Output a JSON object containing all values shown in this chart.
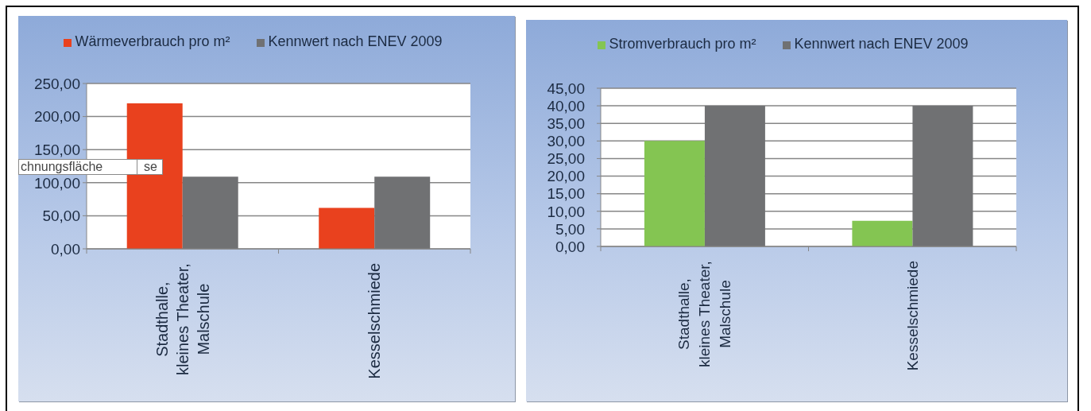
{
  "chart_data": [
    {
      "type": "bar",
      "categories": [
        "Stadthalle, kleines Theater, Malschule",
        "Kesselschmiede"
      ],
      "series": [
        {
          "name": "Wärmeverbrauch pro m²",
          "color": "#e9411e",
          "values": [
            220,
            62
          ]
        },
        {
          "name": "Kennwert nach ENEV 2009",
          "color": "#707173",
          "values": [
            109,
            109
          ]
        }
      ],
      "ylim": [
        0,
        250
      ],
      "yticks": [
        {
          "value": 0,
          "label": "0,00"
        },
        {
          "value": 50,
          "label": "50,00"
        },
        {
          "value": 100,
          "label": "100,00"
        },
        {
          "value": 150,
          "label": "150,00"
        },
        {
          "value": 200,
          "label": "200,00"
        },
        {
          "value": 250,
          "label": "250,00"
        }
      ],
      "grid": "y",
      "legend": "top",
      "annotations": [
        "chnungsfläche",
        "se"
      ]
    },
    {
      "type": "bar",
      "categories": [
        "Stadthalle, kleines Theater, Malschule",
        "Kesselschmiede"
      ],
      "series": [
        {
          "name": "Stromverbrauch pro m²",
          "color": "#84c552",
          "values": [
            30,
            7.3
          ]
        },
        {
          "name": "Kennwert nach ENEV 2009",
          "color": "#707173",
          "values": [
            40,
            40
          ]
        }
      ],
      "ylim": [
        0,
        45
      ],
      "yticks": [
        {
          "value": 0,
          "label": "0,00"
        },
        {
          "value": 5,
          "label": "5,00"
        },
        {
          "value": 10,
          "label": "10,00"
        },
        {
          "value": 15,
          "label": "15,00"
        },
        {
          "value": 20,
          "label": "20,00"
        },
        {
          "value": 25,
          "label": "25,00"
        },
        {
          "value": 30,
          "label": "30,00"
        },
        {
          "value": 35,
          "label": "35,00"
        },
        {
          "value": 40,
          "label": "40,00"
        },
        {
          "value": 45,
          "label": "45,00"
        }
      ],
      "grid": "y",
      "legend": "top"
    }
  ]
}
